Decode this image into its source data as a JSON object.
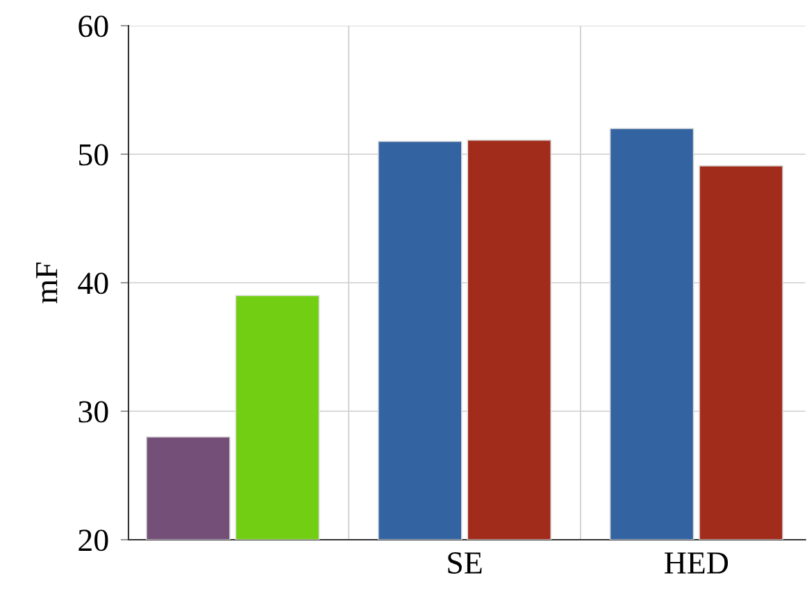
{
  "chart_data": {
    "type": "bar",
    "categories": [
      null,
      "SE",
      "HED"
    ],
    "ylabel": "mF",
    "ylim": [
      20,
      60
    ],
    "yticks": [
      20,
      30,
      40,
      50,
      60
    ],
    "grid": true,
    "series": [
      {
        "colors": [
          "#744f78",
          "#3363a0",
          "#3363a0"
        ],
        "values": [
          28,
          51,
          52
        ]
      },
      {
        "colors": [
          "#72ce12",
          "#a22c1b",
          "#a22c1b"
        ],
        "values": [
          39,
          51.1,
          49.1
        ]
      }
    ]
  }
}
